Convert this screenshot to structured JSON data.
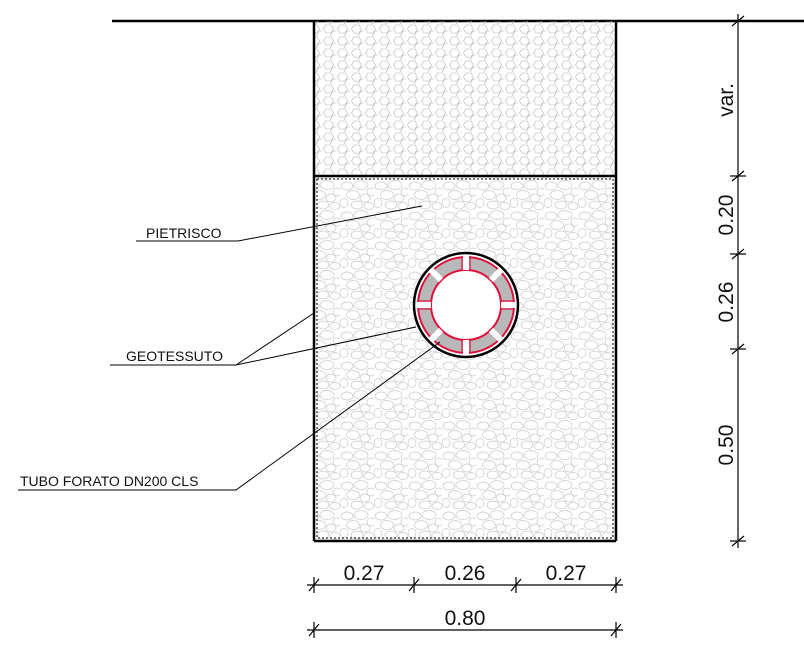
{
  "labels": {
    "pietrisco": "PIETRISCO",
    "geotessuto": "GEOTESSUTO",
    "tubo": "TUBO FORATO DN200 CLS"
  },
  "dimensions": {
    "horizontal": {
      "left": "0.27",
      "middle": "0.26",
      "right": "0.27",
      "total": "0.80"
    },
    "vertical": {
      "top": "var.",
      "second": "0.20",
      "third": "0.26",
      "bottom": "0.50"
    }
  },
  "colors": {
    "line": "#000000",
    "geotextile": "#e0103c",
    "pipe_fill": "#b8b8b8",
    "stone": "#c8c8c8"
  }
}
